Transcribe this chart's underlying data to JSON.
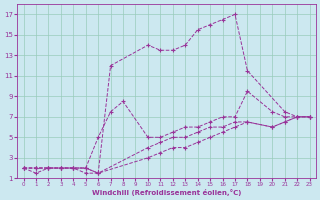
{
  "xlabel": "Windchill (Refroidissement éolien,°C)",
  "bg_color": "#cce8f0",
  "grid_color": "#99ccbb",
  "line_color": "#993399",
  "xlim": [
    -0.5,
    23.5
  ],
  "ylim": [
    1,
    18
  ],
  "xticks": [
    0,
    1,
    2,
    3,
    4,
    5,
    6,
    7,
    8,
    9,
    10,
    11,
    12,
    13,
    14,
    15,
    16,
    17,
    18,
    19,
    20,
    21,
    22,
    23
  ],
  "yticks": [
    1,
    3,
    5,
    7,
    9,
    11,
    13,
    15,
    17
  ],
  "curve1_x": [
    0,
    1,
    2,
    3,
    4,
    5,
    6,
    7,
    10,
    11,
    12,
    13,
    14,
    15,
    16,
    17,
    18,
    21,
    22,
    23
  ],
  "curve1_y": [
    2,
    1.5,
    2,
    2,
    2,
    2,
    1.5,
    12,
    14,
    13.5,
    13.5,
    14,
    15.5,
    16,
    16.5,
    17,
    11.5,
    7.5,
    7,
    7
  ],
  "curve2_x": [
    0,
    1,
    2,
    3,
    4,
    5,
    6,
    7,
    8,
    10,
    11,
    12,
    13,
    14,
    15,
    16,
    17,
    18,
    20,
    21,
    22,
    23
  ],
  "curve2_y": [
    2,
    2,
    2,
    2,
    2,
    2,
    5,
    7.5,
    8.5,
    5,
    5,
    5.5,
    6,
    6,
    6.5,
    7,
    7,
    9.5,
    7.5,
    7,
    7,
    7
  ],
  "curve3_x": [
    0,
    1,
    2,
    3,
    4,
    5,
    6,
    10,
    11,
    12,
    13,
    14,
    15,
    16,
    17,
    18,
    20,
    21,
    22,
    23
  ],
  "curve3_y": [
    2,
    2,
    2,
    2,
    2,
    2,
    1.5,
    4,
    4.5,
    5,
    5,
    5.5,
    6,
    6,
    6.5,
    6.5,
    6,
    6.5,
    7,
    7
  ],
  "curve4_x": [
    0,
    1,
    2,
    3,
    4,
    5,
    6,
    10,
    11,
    12,
    13,
    14,
    15,
    16,
    17,
    18,
    20,
    21,
    22,
    23
  ],
  "curve4_y": [
    2,
    2,
    2,
    2,
    2,
    1.5,
    1.5,
    3,
    3.5,
    4,
    4,
    4.5,
    5,
    5.5,
    6,
    6.5,
    6,
    6.5,
    7,
    7
  ]
}
